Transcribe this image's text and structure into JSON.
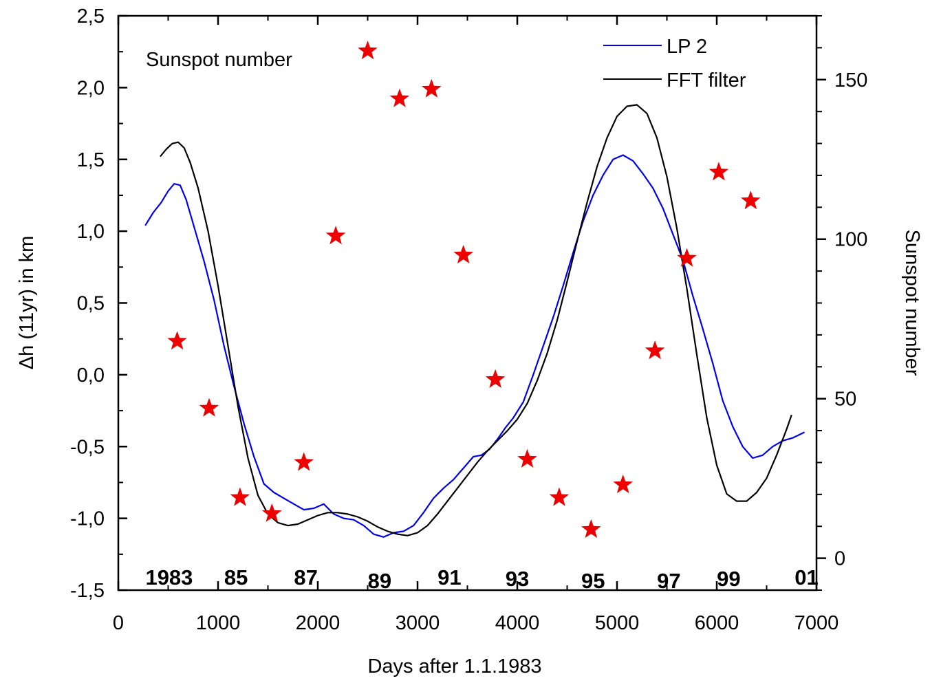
{
  "chart_data": {
    "type": "line",
    "xlabel": "Days after 1.1.1983",
    "ylabel": "Δh (11yr) in km",
    "y2label": "Sunspot number",
    "xlim": [
      0,
      7000
    ],
    "ylim": [
      -1.5,
      2.5
    ],
    "y2lim": [
      -10,
      170
    ],
    "x_ticks": [
      0,
      1000,
      2000,
      3000,
      4000,
      5000,
      6000,
      7000
    ],
    "x_tick_labels": [
      "0",
      "1000",
      "2000",
      "3000",
      "4000",
      "5000",
      "6000",
      "7000"
    ],
    "y_ticks": [
      -1.5,
      -1.0,
      -0.5,
      0.0,
      0.5,
      1.0,
      1.5,
      2.0,
      2.5
    ],
    "y_tick_labels": [
      "-1,5",
      "-1,0",
      "-0,5",
      "0,0",
      "0,5",
      "1,0",
      "1,5",
      "2,0",
      "2,5"
    ],
    "y2_ticks": [
      0,
      50,
      100,
      150
    ],
    "y2_tick_labels": [
      "0",
      "50",
      "100",
      "150"
    ],
    "legend_position": "top-right",
    "series": [
      {
        "name": "LP 2",
        "color": "#0000ee",
        "x": [
          270,
          350,
          430,
          500,
          560,
          620,
          680,
          760,
          860,
          960,
          1060,
          1160,
          1260,
          1360,
          1460,
          1560,
          1660,
          1760,
          1860,
          1960,
          2060,
          2160,
          2260,
          2360,
          2460,
          2560,
          2660,
          2760,
          2860,
          2960,
          3060,
          3160,
          3260,
          3360,
          3460,
          3560,
          3640,
          3720,
          3800,
          3880,
          3960,
          4060,
          4160,
          4260,
          4360,
          4460,
          4560,
          4660,
          4760,
          4860,
          4960,
          5060,
          5160,
          5260,
          5360,
          5460,
          5560,
          5660,
          5760,
          5860,
          5960,
          6060,
          6160,
          6260,
          6360,
          6460,
          6560,
          6660,
          6760,
          6880
        ],
        "y": [
          1.04,
          1.13,
          1.2,
          1.28,
          1.33,
          1.32,
          1.22,
          1.03,
          0.79,
          0.52,
          0.2,
          -0.08,
          -0.34,
          -0.57,
          -0.76,
          -0.82,
          -0.86,
          -0.9,
          -0.94,
          -0.93,
          -0.9,
          -0.97,
          -1.0,
          -1.01,
          -1.05,
          -1.11,
          -1.13,
          -1.1,
          -1.09,
          -1.05,
          -0.96,
          -0.86,
          -0.79,
          -0.73,
          -0.65,
          -0.57,
          -0.56,
          -0.52,
          -0.45,
          -0.37,
          -0.3,
          -0.19,
          0.0,
          0.2,
          0.4,
          0.62,
          0.85,
          1.07,
          1.25,
          1.39,
          1.5,
          1.53,
          1.49,
          1.4,
          1.3,
          1.16,
          0.98,
          0.8,
          0.55,
          0.32,
          0.08,
          -0.18,
          -0.36,
          -0.5,
          -0.58,
          -0.56,
          -0.5,
          -0.46,
          -0.44,
          -0.4
        ]
      },
      {
        "name": "FFT filter",
        "color": "#000000",
        "x": [
          420,
          480,
          540,
          600,
          660,
          720,
          800,
          900,
          1000,
          1100,
          1200,
          1300,
          1400,
          1500,
          1600,
          1700,
          1800,
          1900,
          2000,
          2100,
          2200,
          2300,
          2400,
          2500,
          2600,
          2700,
          2800,
          2900,
          3000,
          3100,
          3200,
          3300,
          3400,
          3500,
          3600,
          3700,
          3800,
          3900,
          4000,
          4100,
          4200,
          4300,
          4400,
          4500,
          4600,
          4700,
          4800,
          4900,
          5000,
          5100,
          5200,
          5300,
          5400,
          5500,
          5600,
          5700,
          5800,
          5900,
          6000,
          6100,
          6200,
          6300,
          6400,
          6500,
          6600,
          6700,
          6750
        ],
        "y": [
          1.52,
          1.57,
          1.61,
          1.62,
          1.58,
          1.48,
          1.3,
          1.0,
          0.62,
          0.2,
          -0.22,
          -0.58,
          -0.84,
          -0.97,
          -1.03,
          -1.05,
          -1.04,
          -1.01,
          -0.98,
          -0.96,
          -0.96,
          -0.97,
          -0.99,
          -1.02,
          -1.06,
          -1.09,
          -1.11,
          -1.12,
          -1.1,
          -1.05,
          -0.97,
          -0.88,
          -0.79,
          -0.7,
          -0.61,
          -0.53,
          -0.46,
          -0.39,
          -0.31,
          -0.2,
          -0.04,
          0.15,
          0.38,
          0.65,
          0.93,
          1.2,
          1.45,
          1.65,
          1.8,
          1.87,
          1.88,
          1.82,
          1.65,
          1.38,
          1.02,
          0.6,
          0.14,
          -0.3,
          -0.63,
          -0.83,
          -0.88,
          -0.88,
          -0.82,
          -0.72,
          -0.56,
          -0.38,
          -0.28
        ]
      },
      {
        "name": "Sunspot number",
        "type": "scatter",
        "axis": "right",
        "color": "#ee0000",
        "x": [
          590,
          910,
          1220,
          1540,
          1860,
          2180,
          2500,
          2820,
          3140,
          3460,
          3780,
          4100,
          4420,
          4740,
          5060,
          5380,
          5700,
          6020,
          6340
        ],
        "y": [
          68,
          47,
          19,
          14,
          30,
          101,
          159,
          144,
          147,
          95,
          56,
          31,
          19,
          9,
          23,
          65,
          94,
          121,
          112
        ]
      }
    ],
    "year_labels": [
      "1983",
      "85",
      "87",
      "89",
      "91",
      "93",
      "95",
      "97",
      "99",
      "01"
    ]
  }
}
